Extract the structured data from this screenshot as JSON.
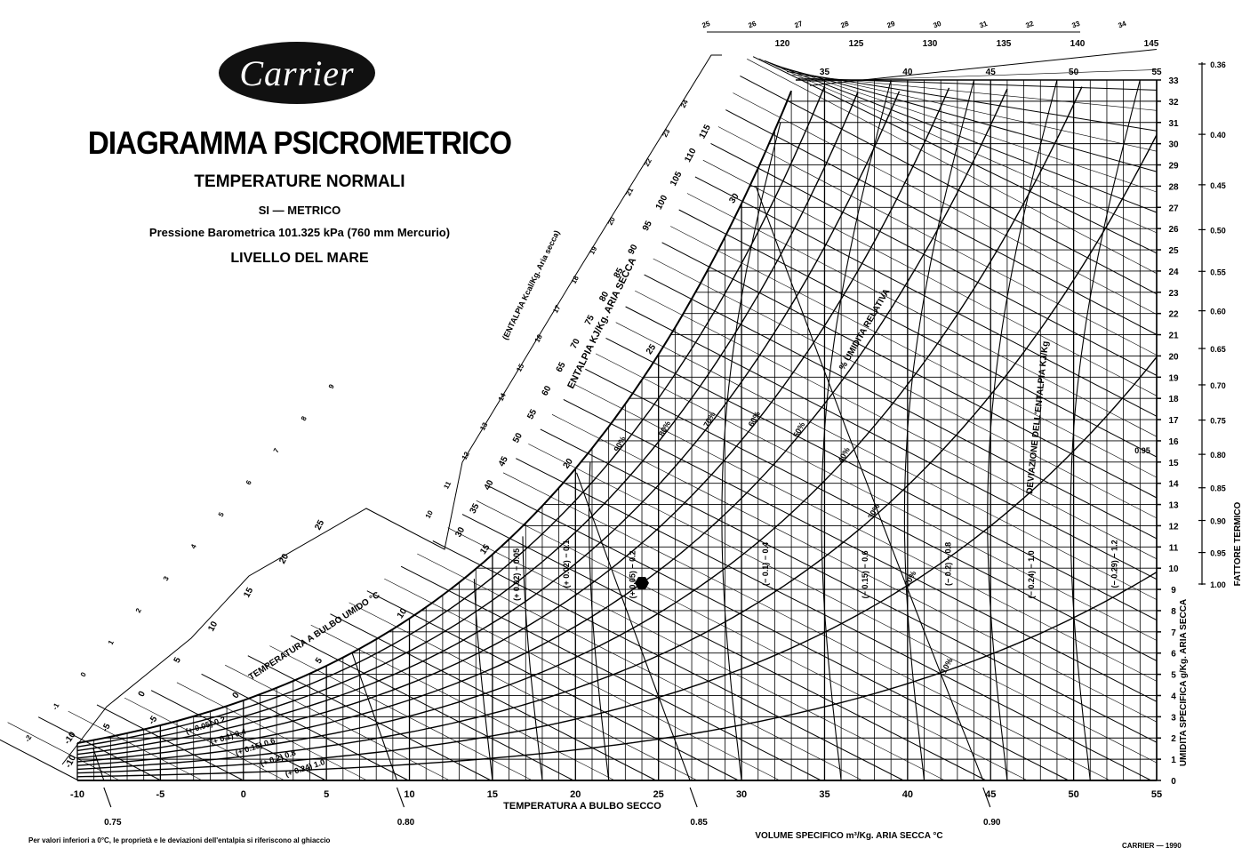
{
  "header": {
    "logo_text": "Carrier",
    "title": "DIAGRAMMA PSICROMETRICO",
    "subtitle": "TEMPERATURE NORMALI",
    "units_line": "SI — METRICO",
    "pressure_line": "Pressione Barometrica 101.325 kPa (760 mm Mercurio)",
    "level_line": "LIVELLO DEL MARE"
  },
  "footer": {
    "note": "Per valori inferiori a 0°C, le proprietà e le deviazioni dell'entalpia si riferiscono al ghiaccio",
    "copyright": "CARRIER — 1990"
  },
  "chart_data": {
    "type": "psychrometric",
    "xlabel": "TEMPERATURA A BULBO SECCO",
    "ylabel": "UMIDITA SPECIFICA g/Kg. ARIA SECCA",
    "xlim": [
      -10,
      55
    ],
    "ylim": [
      0,
      33
    ],
    "x_ticks": [
      -10,
      -5,
      0,
      5,
      10,
      15,
      20,
      25,
      30,
      35,
      40,
      45,
      50,
      55
    ],
    "y_ticks": [
      0,
      1,
      2,
      3,
      4,
      5,
      6,
      7,
      8,
      9,
      10,
      11,
      12,
      13,
      14,
      15,
      16,
      17,
      18,
      19,
      20,
      21,
      22,
      23,
      24,
      25,
      26,
      27,
      28,
      29,
      30,
      31,
      32,
      33
    ],
    "top_x_ticks": [
      35,
      40,
      45,
      50,
      55
    ],
    "relative_humidity_label": "% UMIDITA RELATIVA",
    "relative_humidity": [
      {
        "value": 10,
        "label": "10%"
      },
      {
        "value": 20,
        "label": "20%"
      },
      {
        "value": 30,
        "label": "30%"
      },
      {
        "value": 40,
        "label": "40%"
      },
      {
        "value": 50,
        "label": "50%"
      },
      {
        "value": 60,
        "label": "60%"
      },
      {
        "value": 70,
        "label": "70%"
      },
      {
        "value": 80,
        "label": "80%"
      },
      {
        "value": 90,
        "label": "90%"
      },
      {
        "value": 100,
        "label": ""
      }
    ],
    "wet_bulb_label": "TEMPERATURA A BULBO UMIDO °C",
    "wet_bulb": [
      -10,
      -5,
      0,
      5,
      10,
      15,
      20,
      25,
      30
    ],
    "enthalpy_label": "ENTALPIA KJ/Kg. ARIA SECCA",
    "enthalpy_ticks": [
      -10,
      -5,
      0,
      5,
      10,
      15,
      20,
      25,
      30,
      35,
      40,
      45,
      50,
      55,
      60,
      65,
      70,
      75,
      80,
      85,
      90,
      95,
      100,
      105,
      110,
      115,
      120,
      125,
      130,
      135,
      140,
      145
    ],
    "enthalpy_kcal_label": "(ENTALPIA Kcal/Kg. Aria secca)",
    "enthalpy_kcal_ticks": [
      -2,
      -1,
      0,
      1,
      2,
      3,
      4,
      5,
      6,
      7,
      8,
      9,
      10,
      11,
      12,
      13,
      14,
      15,
      16,
      17,
      18,
      19,
      20,
      21,
      22,
      23,
      24,
      25,
      26,
      27,
      28,
      29,
      30,
      31,
      32,
      33,
      34
    ],
    "specific_volume_label": "VOLUME SPECIFICO m³/Kg. ARIA SECCA °C",
    "specific_volume": [
      {
        "value": 0.75,
        "label": "0.75"
      },
      {
        "value": 0.8,
        "label": "0.80"
      },
      {
        "value": 0.85,
        "label": "0.85"
      },
      {
        "value": 0.9,
        "label": "0.90"
      }
    ],
    "enthalpy_deviation_label": "DEVIAZIONE DELL'ENTALPIA KJ/Kg",
    "enthalpy_deviation": [
      {
        "si": "0.05",
        "kcal": "(+ 0.02)",
        "x": 16.5
      },
      {
        "si": "0.1",
        "kcal": "(+ 0.02)",
        "x": 19.5
      },
      {
        "si": "0.2",
        "kcal": "(+ 0.05)",
        "x": 23.5
      },
      {
        "si": "0.4",
        "kcal": "(− 0.1)",
        "x": 31.5
      },
      {
        "si": "0.6",
        "kcal": "(− 0.15)",
        "x": 37.5
      },
      {
        "si": "0.8",
        "kcal": "(− 0.2)",
        "x": 42.5
      },
      {
        "si": "1.0",
        "kcal": "(− 0.24)",
        "x": 47.5
      },
      {
        "si": "1.2",
        "kcal": "(− 0.29)",
        "x": 52.5
      }
    ],
    "enthalpy_deviation_left": [
      "(+ 0.05) 0.2",
      "(+ 0.1) 0.4",
      "(+ 0.15) 0.6",
      "(+ 0.2) 0.8",
      "(+ 0.24) 1.0"
    ],
    "sensible_heat_factor_label": "FATTORE TERMICO",
    "sensible_heat_factor": [
      "0.36",
      "0.40",
      "0.45",
      "0.50",
      "0.55",
      "0.60",
      "0.65",
      "0.70",
      "0.75",
      "0.80",
      "0.85",
      "0.90",
      "0.95",
      "1.00"
    ],
    "sensible_heat_factor_inline": "0.95",
    "reference_point": {
      "db": 24,
      "w": 9.3
    }
  }
}
